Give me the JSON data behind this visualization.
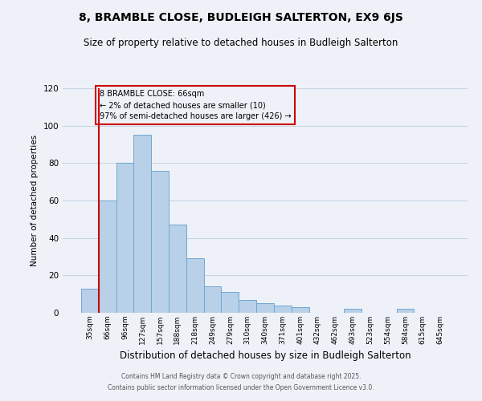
{
  "title": "8, BRAMBLE CLOSE, BUDLEIGH SALTERTON, EX9 6JS",
  "subtitle": "Size of property relative to detached houses in Budleigh Salterton",
  "xlabel": "Distribution of detached houses by size in Budleigh Salterton",
  "ylabel": "Number of detached properties",
  "bin_labels": [
    "35sqm",
    "66sqm",
    "96sqm",
    "127sqm",
    "157sqm",
    "188sqm",
    "218sqm",
    "249sqm",
    "279sqm",
    "310sqm",
    "340sqm",
    "371sqm",
    "401sqm",
    "432sqm",
    "462sqm",
    "493sqm",
    "523sqm",
    "554sqm",
    "584sqm",
    "615sqm",
    "645sqm"
  ],
  "bar_values": [
    13,
    60,
    80,
    95,
    76,
    47,
    29,
    14,
    11,
    7,
    5,
    4,
    3,
    0,
    0,
    2,
    0,
    0,
    2,
    0,
    0
  ],
  "bar_color": "#b8d0e8",
  "bar_edgecolor": "#6fa8d0",
  "highlight_bin": 1,
  "highlight_line_color": "#cc0000",
  "annotation_title": "8 BRAMBLE CLOSE: 66sqm",
  "annotation_line1": "← 2% of detached houses are smaller (10)",
  "annotation_line2": "97% of semi-detached houses are larger (426) →",
  "annotation_box_edgecolor": "#cc0000",
  "ylim": [
    0,
    120
  ],
  "yticks": [
    0,
    20,
    40,
    60,
    80,
    100,
    120
  ],
  "background_color": "#eef2f8",
  "grid_color": "#c8d4e4",
  "footer_line1": "Contains HM Land Registry data © Crown copyright and database right 2025.",
  "footer_line2": "Contains public sector information licensed under the Open Government Licence v3.0."
}
